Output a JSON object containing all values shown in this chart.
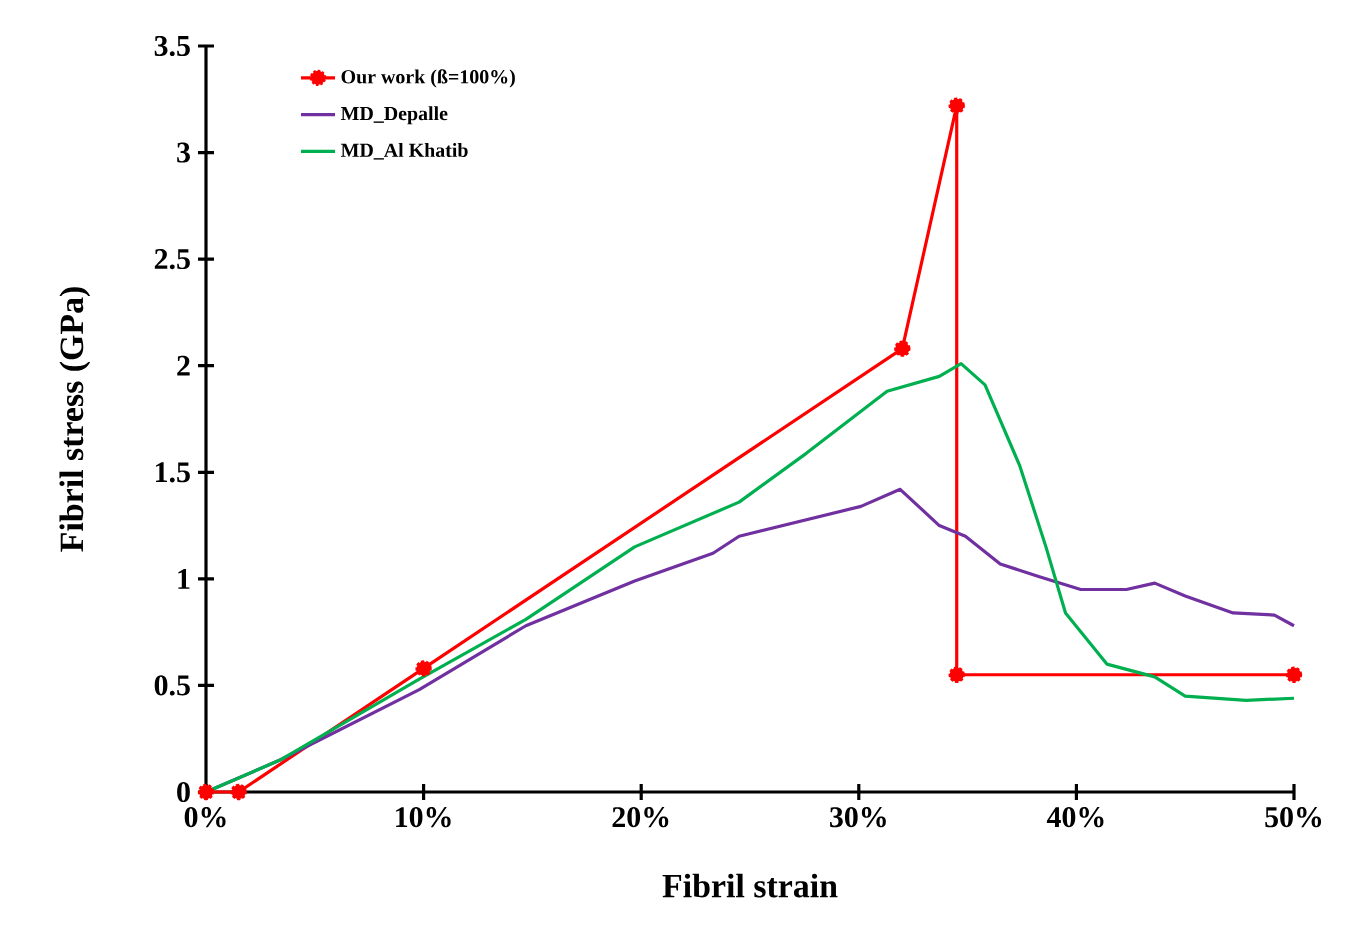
{
  "chart_data": {
    "type": "line",
    "xlabel": "Fibril strain",
    "ylabel": "Fibril stress (GPa)",
    "xlim": [
      0,
      50
    ],
    "ylim": [
      0,
      3.5
    ],
    "xticks": [
      {
        "value": 0,
        "label": "0%"
      },
      {
        "value": 10,
        "label": "10%"
      },
      {
        "value": 20,
        "label": "20%"
      },
      {
        "value": 30,
        "label": "30%"
      },
      {
        "value": 40,
        "label": "40%"
      },
      {
        "value": 50,
        "label": "50%"
      }
    ],
    "yticks": [
      0,
      0.5,
      1,
      1.5,
      2,
      2.5,
      3,
      3.5
    ],
    "grid": false,
    "legend": "top left",
    "line_style": "solid",
    "series": [
      {
        "name": "Our work (ß=100%)",
        "color": "#ff0000",
        "marker": "circle",
        "x": [
          0,
          1.5,
          10,
          32,
          34.5,
          34.5,
          50
        ],
        "values": [
          0,
          0,
          0.58,
          2.08,
          3.22,
          0.55,
          0.55
        ]
      },
      {
        "name": "MD_Depalle",
        "color": "#7030a0",
        "marker": "none",
        "x": [
          0,
          3.4,
          9.8,
          14.7,
          19.7,
          23.3,
          24.5,
          30.1,
          31.9,
          33.7,
          34.9,
          36.5,
          38.3,
          40.2,
          42.3,
          43.6,
          45,
          47.2,
          49.1,
          50
        ],
        "values": [
          0,
          0.15,
          0.48,
          0.78,
          0.99,
          1.12,
          1.2,
          1.34,
          1.42,
          1.25,
          1.2,
          1.07,
          1.01,
          0.95,
          0.95,
          0.98,
          0.92,
          0.84,
          0.83,
          0.78
        ]
      },
      {
        "name": "MD_Al Khatib",
        "color": "#00b050",
        "marker": "none",
        "x": [
          0,
          3.4,
          9.8,
          14.7,
          19.7,
          24.5,
          27.6,
          31.3,
          33.7,
          34.7,
          35.8,
          37.4,
          38.6,
          39.5,
          41.4,
          43.6,
          45,
          47.8,
          50
        ],
        "values": [
          0,
          0.15,
          0.53,
          0.81,
          1.15,
          1.36,
          1.59,
          1.88,
          1.95,
          2.01,
          1.91,
          1.53,
          1.15,
          0.84,
          0.6,
          0.54,
          0.45,
          0.43,
          0.44
        ]
      }
    ]
  }
}
